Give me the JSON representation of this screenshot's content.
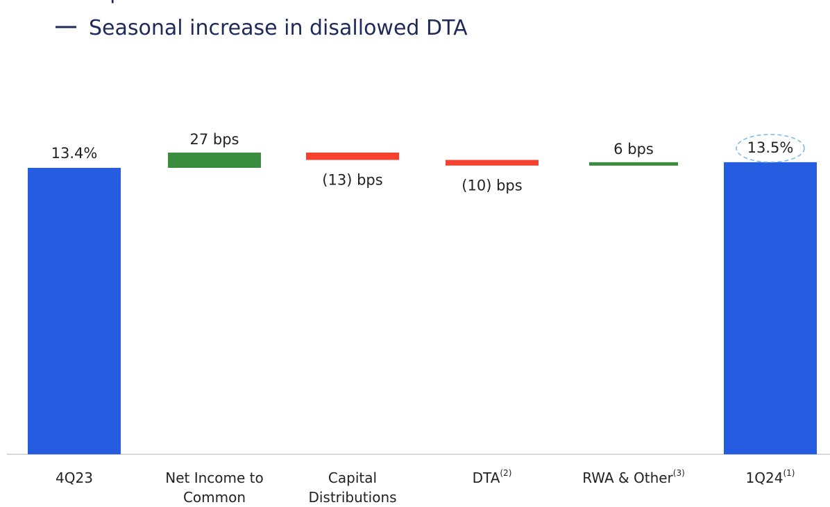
{
  "text_lines": [
    "repurchases",
    "Seasonal increase in disallowed DTA"
  ],
  "chart_data": {
    "type": "waterfall",
    "categories": [
      "4Q23",
      "Net Income to Common",
      "Capital Distributions",
      "DTA",
      "RWA & Other",
      "1Q24"
    ],
    "category_notes": [
      null,
      null,
      null,
      "(2)",
      "(3)",
      "(1)"
    ],
    "measures": [
      "absolute",
      "relative",
      "relative",
      "relative",
      "relative",
      "absolute"
    ],
    "values": [
      13.4,
      27,
      -13,
      -10,
      6,
      13.5
    ],
    "value_labels": [
      "13.4%",
      "27 bps",
      "(13) bps",
      "(10) bps",
      "6 bps",
      "13.5%"
    ],
    "colors": {
      "total": "#255ce0",
      "increase": "#3a8c3e",
      "decrease": "#f5412d"
    }
  }
}
